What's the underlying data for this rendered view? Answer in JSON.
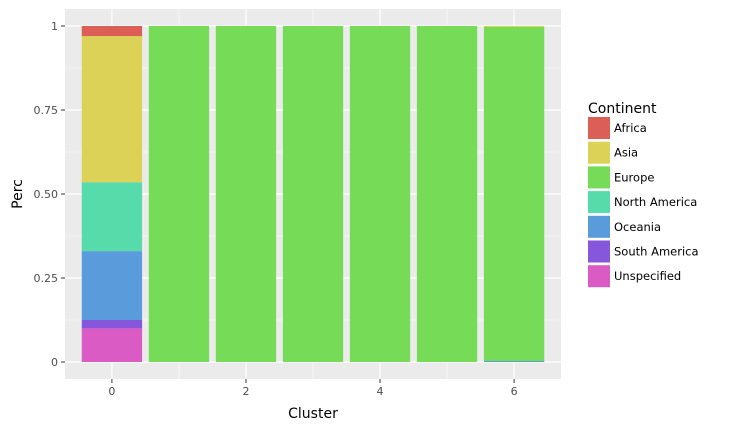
{
  "chart_data": {
    "type": "bar",
    "stacked": true,
    "xlabel": "Cluster",
    "ylabel": "Perc",
    "x_ticks": [
      "0",
      "2",
      "4",
      "6"
    ],
    "y_ticks": [
      "0",
      "0.25",
      "0.50",
      "0.75",
      "1"
    ],
    "ylim": [
      0,
      1
    ],
    "xlim": [
      -0.7,
      6.7
    ],
    "categories": [
      0,
      1,
      2,
      3,
      4,
      5,
      6
    ],
    "legend": {
      "title": "Continent",
      "position": "right"
    },
    "series": [
      {
        "name": "Unspecified",
        "color": "#DB5BC4",
        "values": [
          0.1,
          0,
          0,
          0,
          0,
          0,
          0
        ]
      },
      {
        "name": "South America",
        "color": "#8657DB",
        "values": [
          0.025,
          0,
          0,
          0,
          0,
          0,
          0
        ]
      },
      {
        "name": "Oceania",
        "color": "#5A9BDB",
        "values": [
          0.205,
          0,
          0,
          0,
          0,
          0,
          0.003
        ]
      },
      {
        "name": "North America",
        "color": "#57DBAB",
        "values": [
          0.205,
          0,
          0,
          0,
          0,
          0,
          0
        ]
      },
      {
        "name": "Europe",
        "color": "#76DB57",
        "values": [
          0,
          1,
          1,
          1,
          1,
          1,
          0.994
        ]
      },
      {
        "name": "Asia",
        "color": "#DBD257",
        "values": [
          0.435,
          0,
          0,
          0,
          0,
          0,
          0.003
        ]
      },
      {
        "name": "Africa",
        "color": "#DB5F57",
        "values": [
          0.03,
          0,
          0,
          0,
          0,
          0,
          0
        ]
      }
    ],
    "legend_order": [
      "Africa",
      "Asia",
      "Europe",
      "North America",
      "Oceania",
      "South America",
      "Unspecified"
    ],
    "panel_background": "#EBEBEB",
    "grid": true
  }
}
